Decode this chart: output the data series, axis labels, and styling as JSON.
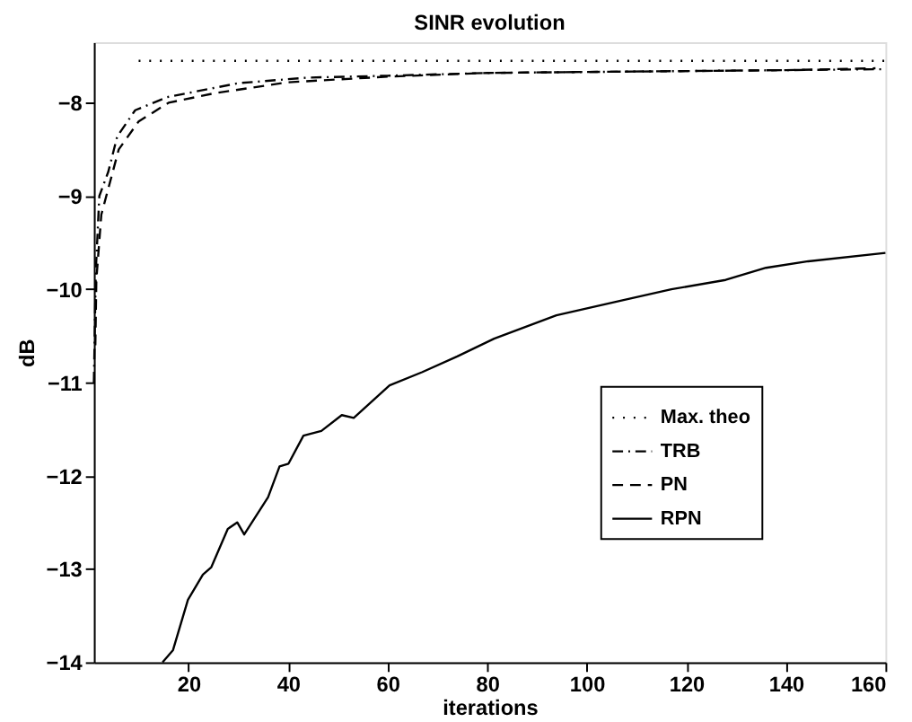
{
  "chart_data": {
    "type": "line",
    "title": "SINR evolution",
    "xlabel": "iterations",
    "ylabel": "dB",
    "xlim": [
      1,
      160
    ],
    "ylim": [
      -14,
      -7.35
    ],
    "xticks": [
      20,
      40,
      60,
      80,
      100,
      120,
      140,
      160
    ],
    "yticks": [
      -14,
      -13,
      -12,
      -11,
      -10,
      -9,
      -8
    ],
    "grid": false,
    "legend": "bottom right",
    "series": [
      {
        "name": "Max. theo",
        "color": "#000000",
        "line_style": "dotted",
        "x": [
          10,
          160
        ],
        "values": [
          -7.55,
          -7.55
        ]
      },
      {
        "name": "TRB",
        "color": "#000000",
        "line_style": "dashdot",
        "x": [
          1,
          1.4,
          2.1,
          3.9,
          5.7,
          9.3,
          15.7,
          30,
          44,
          60,
          80,
          99,
          120,
          140,
          160
        ],
        "values": [
          -11,
          -9.8,
          -9.0,
          -8.74,
          -8.36,
          -8.08,
          -7.94,
          -7.79,
          -7.73,
          -7.71,
          -7.68,
          -7.67,
          -7.66,
          -7.65,
          -7.64
        ]
      },
      {
        "name": "PN",
        "color": "#000000",
        "line_style": "dashed",
        "x": [
          1.3,
          1.5,
          2.5,
          4,
          6,
          10,
          16,
          25,
          40,
          60,
          80,
          99,
          120,
          140,
          158
        ],
        "values": [
          -10.6,
          -9.9,
          -9.2,
          -8.9,
          -8.5,
          -8.2,
          -8.0,
          -7.9,
          -7.78,
          -7.72,
          -7.68,
          -7.67,
          -7.66,
          -7.65,
          -7.63
        ]
      },
      {
        "name": "RPN",
        "color": "#000000",
        "line_style": "solid",
        "x": [
          14.8,
          16.9,
          19.9,
          22.9,
          24.6,
          27.9,
          29.8,
          31.2,
          36,
          38.3,
          40.1,
          43.1,
          46.7,
          50.8,
          53.2,
          60.4,
          66.9,
          74,
          81.4,
          93.9,
          107,
          117,
          127.9,
          136,
          144.5,
          160
        ],
        "values": [
          -14,
          -13.87,
          -13.33,
          -13.06,
          -12.98,
          -12.57,
          -12.5,
          -12.63,
          -12.23,
          -11.9,
          -11.87,
          -11.57,
          -11.52,
          -11.35,
          -11.38,
          -11.03,
          -10.89,
          -10.72,
          -10.53,
          -10.28,
          -10.12,
          -10.0,
          -9.9,
          -9.77,
          -9.7,
          -9.61
        ]
      }
    ]
  }
}
